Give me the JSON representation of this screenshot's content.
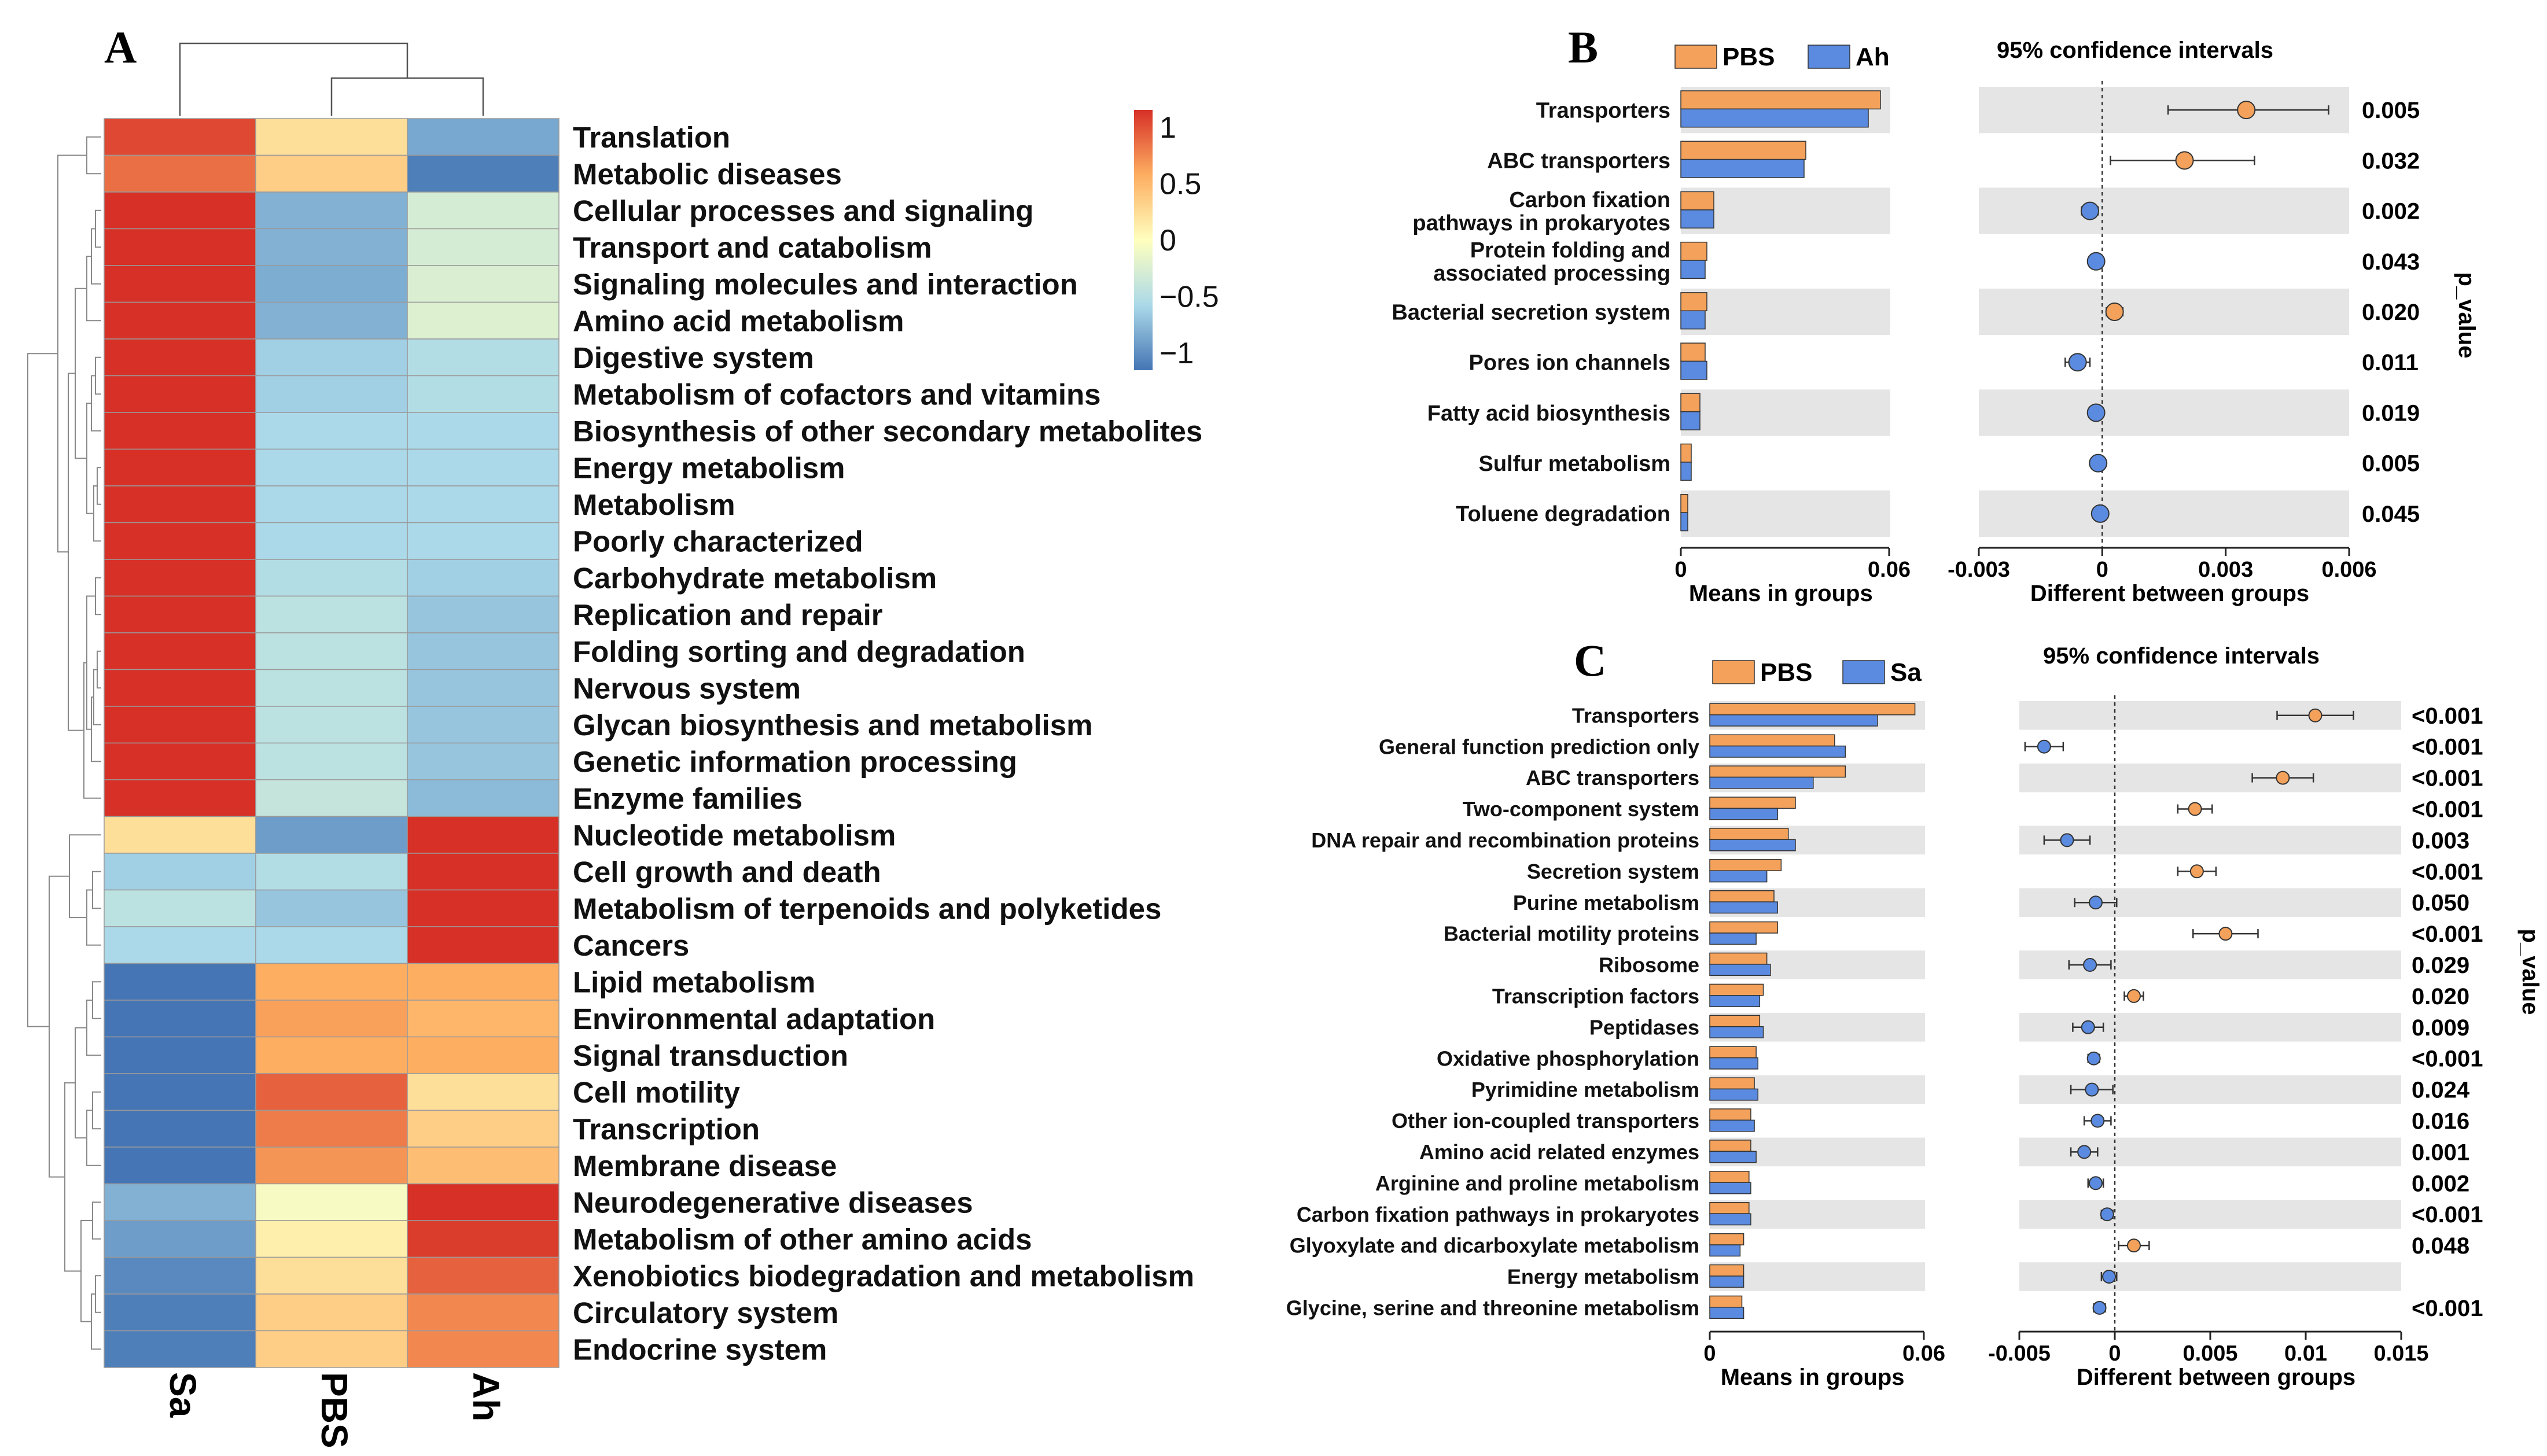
{
  "chart_data": [
    {
      "id": "A",
      "type": "heatmap",
      "panel_label": "A",
      "columns": [
        "Sa",
        "PBS",
        "Ah"
      ],
      "rows": [
        {
          "label": "Translation",
          "values": [
            0.9,
            0.2,
            -0.75
          ]
        },
        {
          "label": "Metabolic diseases",
          "values": [
            0.75,
            0.3,
            -0.95
          ]
        },
        {
          "label": "Cellular processes and signaling",
          "values": [
            1.0,
            -0.7,
            -0.25
          ]
        },
        {
          "label": "Transport and catabolism",
          "values": [
            1.0,
            -0.7,
            -0.25
          ]
        },
        {
          "label": "Signaling molecules and interaction",
          "values": [
            1.0,
            -0.72,
            -0.22
          ]
        },
        {
          "label": "Amino acid metabolism",
          "values": [
            1.0,
            -0.7,
            -0.2
          ]
        },
        {
          "label": "Digestive system",
          "values": [
            1.0,
            -0.55,
            -0.45
          ]
        },
        {
          "label": "Metabolism of cofactors and vitamins",
          "values": [
            1.0,
            -0.55,
            -0.45
          ]
        },
        {
          "label": "Biosynthesis of other secondary metabolites",
          "values": [
            1.0,
            -0.5,
            -0.5
          ]
        },
        {
          "label": "Energy metabolism",
          "values": [
            1.0,
            -0.5,
            -0.5
          ]
        },
        {
          "label": "Metabolism",
          "values": [
            1.0,
            -0.5,
            -0.5
          ]
        },
        {
          "label": "Poorly characterized",
          "values": [
            1.0,
            -0.5,
            -0.5
          ]
        },
        {
          "label": "Carbohydrate metabolism",
          "values": [
            1.0,
            -0.45,
            -0.55
          ]
        },
        {
          "label": "Replication and repair",
          "values": [
            1.0,
            -0.4,
            -0.6
          ]
        },
        {
          "label": "Folding sorting and degradation",
          "values": [
            1.0,
            -0.4,
            -0.6
          ]
        },
        {
          "label": "Nervous system",
          "values": [
            1.0,
            -0.4,
            -0.6
          ]
        },
        {
          "label": "Glycan biosynthesis and metabolism",
          "values": [
            1.0,
            -0.4,
            -0.6
          ]
        },
        {
          "label": "Genetic information processing",
          "values": [
            1.0,
            -0.4,
            -0.6
          ]
        },
        {
          "label": "Enzyme families",
          "values": [
            1.0,
            -0.35,
            -0.65
          ]
        },
        {
          "label": "Nucleotide metabolism",
          "values": [
            0.2,
            -0.8,
            1.0
          ]
        },
        {
          "label": "Cell growth and death",
          "values": [
            -0.55,
            -0.45,
            1.0
          ]
        },
        {
          "label": "Metabolism of terpenoids and polyketides",
          "values": [
            -0.4,
            -0.6,
            1.0
          ]
        },
        {
          "label": "Cancers",
          "values": [
            -0.5,
            -0.5,
            1.0
          ]
        },
        {
          "label": "Lipid metabolism",
          "values": [
            -1.0,
            0.5,
            0.5
          ]
        },
        {
          "label": "Environmental adaptation",
          "values": [
            -1.0,
            0.55,
            0.45
          ]
        },
        {
          "label": "Signal transduction",
          "values": [
            -1.0,
            0.5,
            0.5
          ]
        },
        {
          "label": "Cell motility",
          "values": [
            -1.0,
            0.8,
            0.2
          ]
        },
        {
          "label": "Transcription",
          "values": [
            -1.0,
            0.7,
            0.3
          ]
        },
        {
          "label": "Membrane disease",
          "values": [
            -1.0,
            0.6,
            0.4
          ]
        },
        {
          "label": "Neurodegenerative diseases",
          "values": [
            -0.7,
            -0.05,
            1.0
          ]
        },
        {
          "label": "Metabolism of other amino acids",
          "values": [
            -0.8,
            0.1,
            0.95
          ]
        },
        {
          "label": "Xenobiotics biodegradation and metabolism",
          "values": [
            -0.9,
            0.2,
            0.8
          ]
        },
        {
          "label": "Circulatory system",
          "values": [
            -0.95,
            0.3,
            0.65
          ]
        },
        {
          "label": "Endocrine system",
          "values": [
            -0.95,
            0.3,
            0.65
          ]
        }
      ],
      "colorbar": {
        "ticks": [
          "1",
          "0.5",
          "0",
          "−0.5",
          "−1"
        ],
        "range": [
          -1,
          1
        ],
        "colors": {
          "high": "#d73027",
          "mid_high": "#fdae61",
          "mid": "#ffffbf",
          "mid_low": "#abd9e9",
          "low": "#4575b4"
        }
      }
    },
    {
      "id": "B",
      "type": "bar",
      "panel_label": "B",
      "legend": [
        {
          "name": "PBS",
          "color": "#F4A25B"
        },
        {
          "name": "Ah",
          "color": "#5B8BE0"
        }
      ],
      "categories": [
        "Transporters",
        "ABC transporters",
        "Carbon fixation pathways in prokaryotes",
        "Protein folding and associated processing",
        "Bacterial secretion system",
        "Pores ion channels",
        "Fatty acid biosynthesis",
        "Sulfur metabolism",
        "Toluene degradation"
      ],
      "category_lines": [
        [
          "Transporters"
        ],
        [
          "ABC transporters"
        ],
        [
          "Carbon fixation",
          "pathways in prokaryotes"
        ],
        [
          "Protein folding and",
          "associated processing"
        ],
        [
          "Bacterial secretion system"
        ],
        [
          "Pores ion channels"
        ],
        [
          "Fatty acid biosynthesis"
        ],
        [
          "Sulfur metabolism"
        ],
        [
          "Toluene degradation"
        ]
      ],
      "series": [
        {
          "name": "PBS",
          "values": [
            0.0575,
            0.036,
            0.0095,
            0.0075,
            0.0075,
            0.007,
            0.0055,
            0.003,
            0.002
          ]
        },
        {
          "name": "Ah",
          "values": [
            0.054,
            0.0355,
            0.0095,
            0.007,
            0.007,
            0.0075,
            0.0055,
            0.003,
            0.002
          ]
        }
      ],
      "bar_axis": {
        "ticks": [
          0,
          0.06
        ],
        "tick_labels": [
          "0",
          "0.06"
        ],
        "xlabel": "Means in groups",
        "xlim": [
          0,
          0.06
        ]
      },
      "ci": {
        "title": "95% confidence intervals",
        "xlabel": "Different between groups",
        "xlim": [
          -0.003,
          0.006
        ],
        "ticks": [
          -0.003,
          0,
          0.003,
          0.006
        ],
        "tick_labels": [
          "-0.003",
          "0",
          "0.003",
          "0.006"
        ],
        "diff": [
          0.0035,
          0.002,
          -0.0003,
          -0.00015,
          0.0003,
          -0.0006,
          -0.00015,
          -0.0001,
          -5e-05
        ],
        "lower": [
          0.0016,
          0.0002,
          -0.0005,
          -0.0003,
          0.0001,
          -0.0009,
          -0.0003,
          -0.00022,
          -0.0002
        ],
        "upper": [
          0.0055,
          0.0037,
          -0.0001,
          0.0,
          0.0005,
          -0.0003,
          0.0,
          0.0,
          0.0001
        ]
      },
      "p_values": [
        "0.005",
        "0.032",
        "0.002",
        "0.043",
        "0.020",
        "0.011",
        "0.019",
        "0.005",
        "0.045"
      ],
      "p_axis_label": "p_value"
    },
    {
      "id": "C",
      "type": "bar",
      "panel_label": "C",
      "legend": [
        {
          "name": "PBS",
          "color": "#F4A25B"
        },
        {
          "name": "Sa",
          "color": "#5B8BE0"
        }
      ],
      "categories": [
        "Transporters",
        "General function prediction only",
        "ABC transporters",
        "Two-component system",
        "DNA repair and recombination proteins",
        "Secretion system",
        "Purine metabolism",
        "Bacterial motility proteins",
        "Ribosome",
        "Transcription factors",
        "Peptidases",
        "Oxidative phosphorylation",
        "Pyrimidine metabolism",
        "Other ion-coupled transporters",
        "Amino acid related enzymes",
        "Arginine and proline metabolism",
        "Carbon fixation pathways in prokaryotes",
        "Glyoxylate and dicarboxylate metabolism",
        "Energy metabolism",
        "Glycine, serine and threonine metabolism"
      ],
      "series": [
        {
          "name": "PBS",
          "values": [
            0.0575,
            0.035,
            0.038,
            0.024,
            0.022,
            0.02,
            0.018,
            0.019,
            0.016,
            0.015,
            0.014,
            0.013,
            0.0125,
            0.0115,
            0.0115,
            0.011,
            0.011,
            0.0095,
            0.0095,
            0.009
          ]
        },
        {
          "name": "Sa",
          "values": [
            0.047,
            0.038,
            0.029,
            0.019,
            0.024,
            0.016,
            0.019,
            0.013,
            0.017,
            0.014,
            0.015,
            0.0135,
            0.0135,
            0.0125,
            0.013,
            0.0115,
            0.0115,
            0.0085,
            0.0095,
            0.0095
          ]
        }
      ],
      "bar_axis": {
        "ticks": [
          0,
          0.06
        ],
        "tick_labels": [
          "0",
          "0.06"
        ],
        "xlabel": "Means in groups",
        "xlim": [
          0,
          0.06
        ]
      },
      "ci": {
        "title": "95% confidence intervals",
        "xlabel": "Different between groups",
        "xlim": [
          -0.005,
          0.015
        ],
        "ticks": [
          -0.005,
          0,
          0.005,
          0.01,
          0.015
        ],
        "tick_labels": [
          "-0.005",
          "0",
          "0.005",
          "0.01",
          "0.015"
        ],
        "diff": [
          0.0105,
          -0.0037,
          0.0088,
          0.0042,
          -0.0025,
          0.0043,
          -0.001,
          0.0058,
          -0.0013,
          0.001,
          -0.0014,
          -0.0011,
          -0.0012,
          -0.0009,
          -0.0016,
          -0.001,
          -0.0004,
          0.001,
          -0.0003,
          -0.0008
        ],
        "lower": [
          0.0085,
          -0.0047,
          0.0072,
          0.0033,
          -0.0037,
          0.0033,
          -0.0021,
          0.0041,
          -0.0024,
          0.0005,
          -0.0022,
          -0.0014,
          -0.0023,
          -0.0016,
          -0.0023,
          -0.0014,
          -0.0007,
          0.0002,
          -0.0007,
          -0.0011
        ],
        "upper": [
          0.0125,
          -0.0027,
          0.0104,
          0.0051,
          -0.0013,
          0.0053,
          0.0001,
          0.0075,
          -0.0002,
          0.0015,
          -0.0006,
          -0.0008,
          -0.0001,
          -0.0002,
          -0.0009,
          -0.0006,
          -0.0001,
          0.0018,
          0.0001,
          -0.0005
        ]
      },
      "p_values": [
        "<0.001",
        "<0.001",
        "<0.001",
        "<0.001",
        "0.003",
        "<0.001",
        "0.050",
        "<0.001",
        "0.029",
        "0.020",
        "0.009",
        "<0.001",
        "0.024",
        "0.016",
        "0.001",
        "0.002",
        "<0.001",
        "0.048",
        "",
        "<0.001"
      ],
      "p_axis_label": "p_value"
    }
  ]
}
